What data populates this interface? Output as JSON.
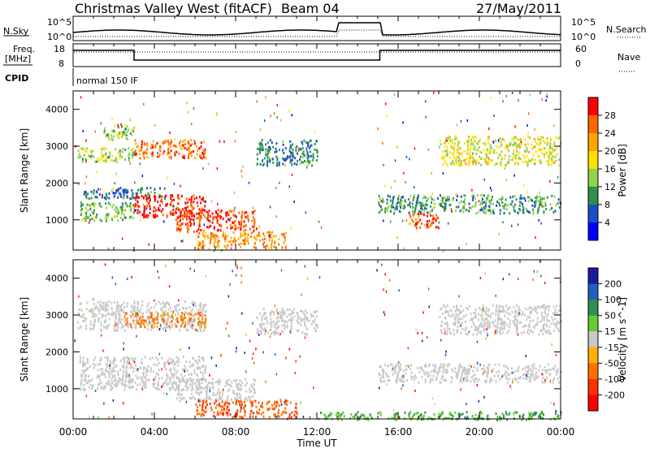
{
  "header": {
    "title": "Christmas Valley West (fitACF)",
    "beam": "Beam 04",
    "date": "27/May/2011"
  },
  "status_panel": {
    "nsky_label": "N.Sky",
    "nsky_ticks": [
      "10^5",
      "10^0"
    ],
    "nsky_right_ticks": [
      "10^5",
      "10^0"
    ],
    "nsearch_label": "N.Search",
    "freq_label_1": "Freq.",
    "freq_label_2": "[MHz]",
    "freq_ticks": [
      "18",
      "8"
    ],
    "nave_ticks": [
      "60",
      "0"
    ],
    "nave_label": "Nave",
    "cpid_label": "CPID",
    "cpid_value": "normal 150 IF"
  },
  "x_tick_labels": [
    "00:00",
    "04:00",
    "08:00",
    "12:00",
    "16:00",
    "20:00",
    "00:00"
  ],
  "x_axis_label": "Time UT",
  "y_axis_label": "Slant Range [km]",
  "y_tick_labels": [
    "1000",
    "2000",
    "3000",
    "4000"
  ],
  "power_colorbar": {
    "label": "Power [dB]",
    "ticks": [
      "28",
      "24",
      "20",
      "16",
      "12",
      "8",
      "4"
    ],
    "colors": [
      "#ff0000",
      "#ff6600",
      "#ffa500",
      "#ffe000",
      "#8fd34f",
      "#2f8f4f",
      "#1a4fc8",
      "#0000ff"
    ]
  },
  "velocity_colorbar": {
    "label": "Velocity [m s^-1]",
    "ticks": [
      "200",
      "100",
      "50",
      "15",
      "-15",
      "-50",
      "-100",
      "-200"
    ],
    "colors": [
      "#1a1aa0",
      "#2060c0",
      "#2f8f4f",
      "#66cc33",
      "#c8c8c8",
      "#ffb000",
      "#ff7000",
      "#ff3000",
      "#ff0000"
    ]
  },
  "chart_data": [
    {
      "type": "heatmap",
      "title": "",
      "xlabel": "Time UT",
      "ylabel": "Slant Range [km]",
      "x_range_hours": [
        0,
        24
      ],
      "y_range_km": [
        180,
        4500
      ],
      "colorbar_label": "Power [dB]",
      "colorbar_range": [
        0,
        30
      ],
      "scatter_bands": [
        {
          "start_h": 0.2,
          "end_h": 3.0,
          "range_km": [
            2600,
            3000
          ],
          "power_db": 14
        },
        {
          "start_h": 1.5,
          "end_h": 3.0,
          "range_km": [
            3200,
            3600
          ],
          "power_db": 14
        },
        {
          "start_h": 3.0,
          "end_h": 6.5,
          "range_km": [
            2700,
            3200
          ],
          "power_db": 24
        },
        {
          "start_h": 0.3,
          "end_h": 3.0,
          "range_km": [
            1000,
            1500
          ],
          "power_db": 12
        },
        {
          "start_h": 0.5,
          "end_h": 4.5,
          "range_km": [
            1600,
            1900
          ],
          "power_db": 8
        },
        {
          "start_h": 3.0,
          "end_h": 6.5,
          "range_km": [
            1100,
            1700
          ],
          "power_db": 28
        },
        {
          "start_h": 5.0,
          "end_h": 9.0,
          "range_km": [
            700,
            1300
          ],
          "power_db": 26
        },
        {
          "start_h": 6.0,
          "end_h": 10.5,
          "range_km": [
            250,
            700
          ],
          "power_db": 22
        },
        {
          "start_h": 9.0,
          "end_h": 12.0,
          "range_km": [
            2500,
            3200
          ],
          "power_db": 8
        },
        {
          "start_h": 15.0,
          "end_h": 24.0,
          "range_km": [
            1200,
            1700
          ],
          "power_db": 10
        },
        {
          "start_h": 16.5,
          "end_h": 18.0,
          "range_km": [
            800,
            1200
          ],
          "power_db": 26
        },
        {
          "start_h": 18.0,
          "end_h": 24.0,
          "range_km": [
            2500,
            3300
          ],
          "power_db": 16
        }
      ]
    },
    {
      "type": "heatmap",
      "title": "",
      "xlabel": "Time UT",
      "ylabel": "Slant Range [km]",
      "x_range_hours": [
        0,
        24
      ],
      "y_range_km": [
        180,
        4500
      ],
      "colorbar_label": "Velocity [m s^-1]",
      "colorbar_range": [
        -200,
        200
      ],
      "scatter_bands": [
        {
          "start_h": 0.2,
          "end_h": 6.5,
          "range_km": [
            2600,
            3400
          ],
          "velocity": 0
        },
        {
          "start_h": 2.5,
          "end_h": 6.5,
          "range_km": [
            2700,
            3100
          ],
          "velocity": -40
        },
        {
          "start_h": 0.3,
          "end_h": 6.5,
          "range_km": [
            1000,
            1900
          ],
          "velocity": 0
        },
        {
          "start_h": 5.0,
          "end_h": 9.0,
          "range_km": [
            700,
            1300
          ],
          "velocity": 0
        },
        {
          "start_h": 6.0,
          "end_h": 11.0,
          "range_km": [
            250,
            700
          ],
          "velocity": -70
        },
        {
          "start_h": 9.0,
          "end_h": 12.0,
          "range_km": [
            2500,
            3200
          ],
          "velocity": 0
        },
        {
          "start_h": 15.0,
          "end_h": 24.0,
          "range_km": [
            1200,
            1700
          ],
          "velocity": 0
        },
        {
          "start_h": 18.0,
          "end_h": 24.0,
          "range_km": [
            2500,
            3300
          ],
          "velocity": 0
        },
        {
          "start_h": 12.0,
          "end_h": 24.0,
          "range_km": [
            180,
            400
          ],
          "velocity": 30
        }
      ]
    }
  ]
}
